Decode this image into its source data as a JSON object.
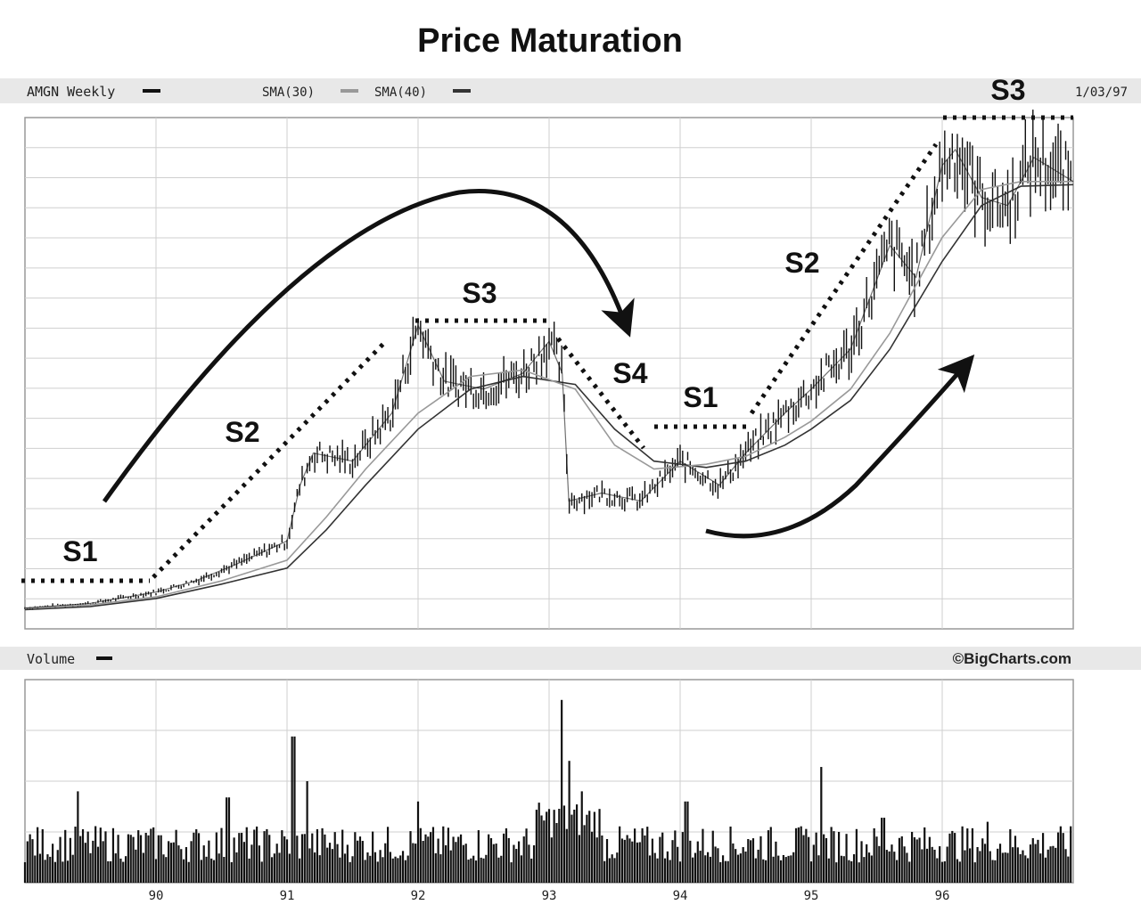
{
  "chart_data": {
    "type": "line",
    "title": "Price Maturation",
    "ticker_label": "AMGN Weekly",
    "sma30_label": "SMA(30)",
    "sma40_label": "SMA(40)",
    "date_label": "1/03/97",
    "volume_label": "Volume",
    "credit": "©BigCharts.com",
    "x_tick_labels": [
      "90",
      "91",
      "92",
      "93",
      "94",
      "95",
      "96"
    ],
    "x_range_years": [
      1989.0,
      1997.0
    ],
    "price_range": [
      0,
      32
    ],
    "grid": true,
    "colors": {
      "price": "#111111",
      "sma30": "#999999",
      "sma40": "#333333",
      "volume": "#111111",
      "grid": "#cfcfcf",
      "header_bg": "#e8e8e8"
    },
    "price_series": {
      "name": "AMGN Weekly",
      "x": [
        1989.0,
        1989.5,
        1990.0,
        1990.3,
        1990.6,
        1991.0,
        1991.1,
        1991.2,
        1991.5,
        1991.8,
        1992.0,
        1992.2,
        1992.5,
        1992.8,
        1993.0,
        1993.1,
        1993.15,
        1993.4,
        1993.7,
        1994.0,
        1994.3,
        1994.5,
        1994.8,
        1995.0,
        1995.3,
        1995.6,
        1995.8,
        1996.0,
        1996.1,
        1996.3,
        1996.5,
        1996.7,
        1997.0
      ],
      "y": [
        1.3,
        1.6,
        2.3,
        3.0,
        4.0,
        5.5,
        9.0,
        11.0,
        10.5,
        13.5,
        19.0,
        15.5,
        15.0,
        16.0,
        18.0,
        16.0,
        8.0,
        8.5,
        8.0,
        10.5,
        9.0,
        11.0,
        13.5,
        15.0,
        17.5,
        24.0,
        22.0,
        29.0,
        30.0,
        27.0,
        26.5,
        29.5,
        28.0
      ]
    },
    "sma30_series": {
      "name": "SMA(30)",
      "x": [
        1989.0,
        1989.5,
        1990.0,
        1990.5,
        1991.0,
        1991.3,
        1991.6,
        1992.0,
        1992.4,
        1992.8,
        1993.2,
        1993.5,
        1993.8,
        1994.2,
        1994.5,
        1994.8,
        1995.0,
        1995.3,
        1995.6,
        1996.0,
        1996.3,
        1996.6,
        1997.0
      ],
      "y": [
        1.3,
        1.5,
        2.0,
        3.0,
        4.3,
        7.0,
        10.0,
        13.5,
        15.8,
        16.2,
        15.0,
        11.5,
        10.0,
        10.3,
        10.8,
        12.0,
        13.0,
        15.0,
        18.5,
        24.5,
        27.5,
        28.0,
        28.0
      ]
    },
    "sma40_series": {
      "name": "SMA(40)",
      "x": [
        1989.0,
        1989.5,
        1990.0,
        1990.5,
        1991.0,
        1991.3,
        1991.6,
        1992.0,
        1992.4,
        1992.8,
        1993.2,
        1993.5,
        1993.8,
        1994.2,
        1994.5,
        1994.8,
        1995.0,
        1995.3,
        1995.6,
        1996.0,
        1996.3,
        1996.6,
        1997.0
      ],
      "y": [
        1.2,
        1.4,
        1.9,
        2.8,
        3.8,
        6.2,
        9.0,
        12.5,
        15.0,
        15.8,
        15.3,
        12.5,
        10.5,
        10.1,
        10.5,
        11.5,
        12.5,
        14.3,
        17.5,
        23.0,
        26.5,
        27.7,
        27.8
      ]
    },
    "volume_spikes": {
      "x": [
        1989.4,
        1990.55,
        1991.05,
        1991.15,
        1992.0,
        1993.1,
        1993.15,
        1993.25,
        1994.05,
        1995.08,
        1995.55,
        1996.35
      ],
      "level": [
        0.45,
        0.42,
        0.72,
        0.5,
        0.4,
        0.9,
        0.6,
        0.45,
        0.4,
        0.57,
        0.32,
        0.3
      ]
    }
  },
  "annotations": {
    "s1_left": "S1",
    "s2_left": "S2",
    "s3_mid": "S3",
    "s4": "S4",
    "s1_mid": "S1",
    "s2_right": "S2",
    "s3_top": "S3"
  }
}
